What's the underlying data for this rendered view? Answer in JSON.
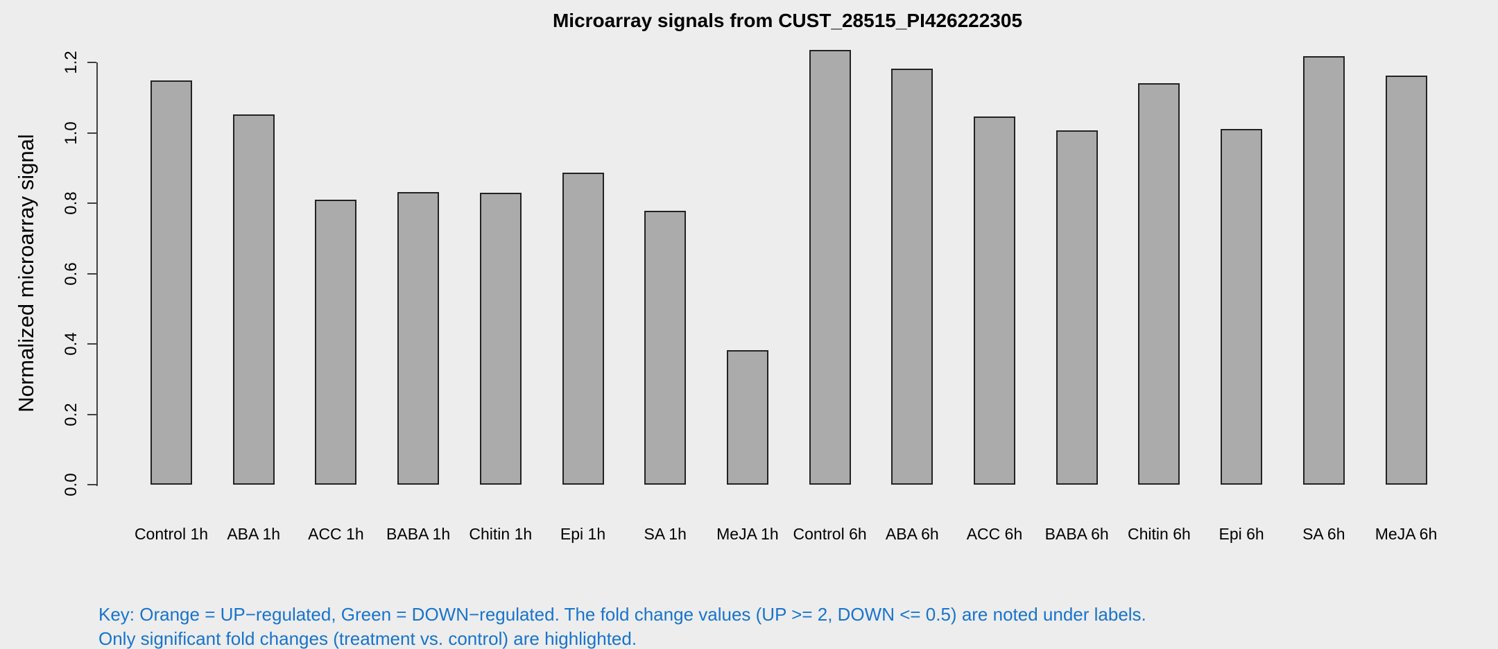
{
  "chart_data": {
    "type": "bar",
    "title": "Microarray signals from CUST_28515_PI426222305",
    "xlabel": "",
    "ylabel": "Normalized microarray signal",
    "categories": [
      "Control 1h",
      "ABA 1h",
      "ACC 1h",
      "BABA 1h",
      "Chitin 1h",
      "Epi 1h",
      "SA 1h",
      "MeJA 1h",
      "Control 6h",
      "ABA 6h",
      "ACC 6h",
      "BABA 6h",
      "Chitin 6h",
      "Epi 6h",
      "SA 6h",
      "MeJA 6h"
    ],
    "values": [
      1.149,
      1.052,
      0.81,
      0.832,
      0.83,
      0.886,
      0.779,
      0.382,
      1.236,
      1.183,
      1.046,
      1.007,
      1.14,
      1.01,
      1.218,
      1.162
    ],
    "ylim": [
      0,
      1.2
    ],
    "yticks": [
      0.0,
      0.2,
      0.4,
      0.6,
      0.8,
      1.0,
      1.2
    ],
    "ytick_labels": [
      "0.0",
      "0.2",
      "0.4",
      "0.6",
      "0.8",
      "1.0",
      "1.2"
    ],
    "grid": false,
    "legend": null,
    "colors": {
      "background": "#EDEDED",
      "bar_fill": "#ABABAB",
      "bar_border": "#222222",
      "axis": "#404040",
      "text": "#000000"
    }
  },
  "footer": {
    "key_line1": "Key: Orange = UP−regulated, Green = DOWN−regulated. The fold change values (UP >= 2, DOWN <= 0.5) are noted under labels.",
    "key_line2": "Only significant fold changes (treatment vs. control) are highlighted.",
    "key_color": "#1874CD"
  }
}
